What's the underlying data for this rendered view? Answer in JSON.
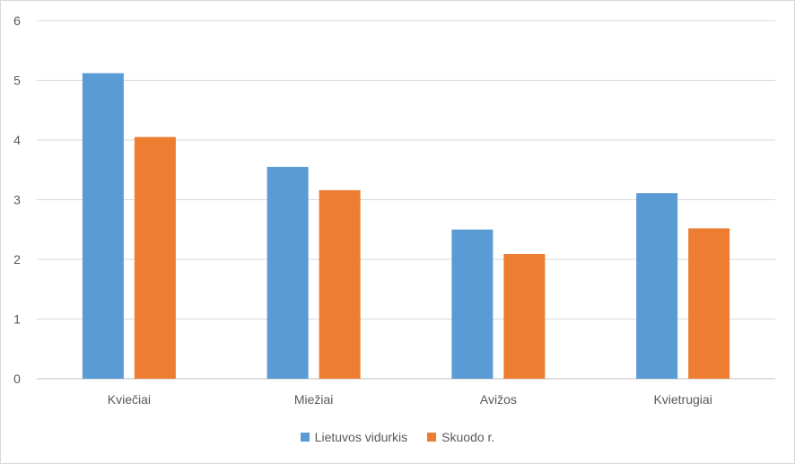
{
  "chart_data": {
    "type": "bar",
    "categories": [
      "Kviečiai",
      "Miežiai",
      "Avižos",
      "Kvietrugiai"
    ],
    "series": [
      {
        "name": "Lietuvos vidurkis",
        "values": [
          5.12,
          3.55,
          2.5,
          3.11
        ],
        "color": "#5b9bd5"
      },
      {
        "name": "Skuodo r.",
        "values": [
          4.05,
          3.16,
          2.09,
          2.52
        ],
        "color": "#ed7d31"
      }
    ],
    "ylim": [
      0,
      6
    ],
    "yticks": [
      "0",
      "1",
      "2",
      "3",
      "4",
      "5",
      "6"
    ],
    "grid": true,
    "legend": "bottom-center",
    "title": "",
    "xlabel": "",
    "ylabel": ""
  }
}
